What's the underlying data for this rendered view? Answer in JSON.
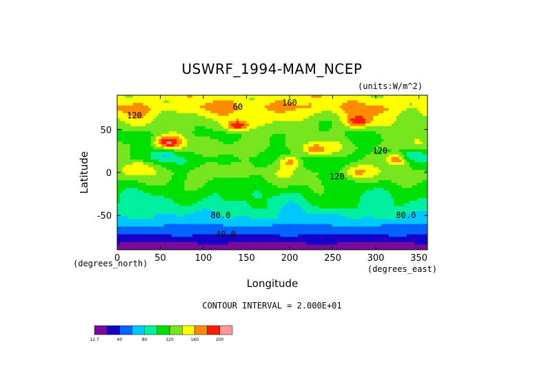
{
  "chart_data": {
    "type": "heatmap",
    "title": "USWRF_1994-MAM_NCEP",
    "units_label": "(units:W/m^2)",
    "xlabel": "Longitude",
    "ylabel": "Latitude",
    "x_unit_label": "(degrees_east)",
    "y_unit_label": "(degrees_north)",
    "xlim": [
      0,
      360
    ],
    "ylim": [
      -90,
      90
    ],
    "x_ticks": [
      0,
      50,
      100,
      150,
      200,
      250,
      300,
      350
    ],
    "y_ticks": [
      -50,
      0,
      50
    ],
    "contour_interval_text": "CONTOUR INTERVAL = 2.000E+01",
    "contour_labels": [
      {
        "text": "160",
        "lon": 200,
        "lat": 78
      },
      {
        "text": "60",
        "lon": 140,
        "lat": 73
      },
      {
        "text": "120",
        "lon": 20,
        "lat": 63
      },
      {
        "text": "120",
        "lon": 305,
        "lat": 22
      },
      {
        "text": "120",
        "lon": 255,
        "lat": -8
      },
      {
        "text": "80.0",
        "lon": 120,
        "lat": -53
      },
      {
        "text": "80.0",
        "lon": 335,
        "lat": -53
      },
      {
        "text": "40.0",
        "lon": 126,
        "lat": -75
      }
    ],
    "colorbar": {
      "min_label": "12.7",
      "tick_labels": [
        "40",
        "80",
        "120",
        "160",
        "200"
      ],
      "colors": [
        "#7a0b9a",
        "#1400c8",
        "#0064ff",
        "#00c8ff",
        "#00f0a0",
        "#00e000",
        "#78e61e",
        "#ffff00",
        "#ff8c00",
        "#ff1e00",
        "#ff9898"
      ]
    },
    "latitude_bands": [
      {
        "lat": 85,
        "value": 150
      },
      {
        "lat": 75,
        "value": 160
      },
      {
        "lat": 60,
        "value": 135
      },
      {
        "lat": 45,
        "value": 120
      },
      {
        "lat": 30,
        "value": 130
      },
      {
        "lat": 15,
        "value": 110
      },
      {
        "lat": 0,
        "value": 130
      },
      {
        "lat": -10,
        "value": 120
      },
      {
        "lat": -25,
        "value": 105
      },
      {
        "lat": -40,
        "value": 95
      },
      {
        "lat": -50,
        "value": 80
      },
      {
        "lat": -58,
        "value": 70
      },
      {
        "lat": -63,
        "value": 55
      },
      {
        "lat": -70,
        "value": 45
      },
      {
        "lat": -77,
        "value": 30
      },
      {
        "lat": -85,
        "value": 12.7
      }
    ],
    "features": [
      {
        "lon": 190,
        "lat": 77,
        "value": 175
      },
      {
        "lon": 280,
        "lat": 60,
        "value": 200
      },
      {
        "lon": 60,
        "lat": 35,
        "value": 205
      },
      {
        "lon": 140,
        "lat": 55,
        "value": 195
      },
      {
        "lon": 325,
        "lat": 15,
        "value": 180
      },
      {
        "lon": 230,
        "lat": 27,
        "value": 175
      },
      {
        "lon": 280,
        "lat": 0,
        "value": 165
      },
      {
        "lon": 25,
        "lat": 5,
        "value": 160
      },
      {
        "lon": 200,
        "lat": 12,
        "value": 165
      },
      {
        "lon": 55,
        "lat": 20,
        "value": 75
      },
      {
        "lon": 345,
        "lat": 20,
        "value": 80
      },
      {
        "lon": 135,
        "lat": -40,
        "value": 80
      }
    ]
  }
}
